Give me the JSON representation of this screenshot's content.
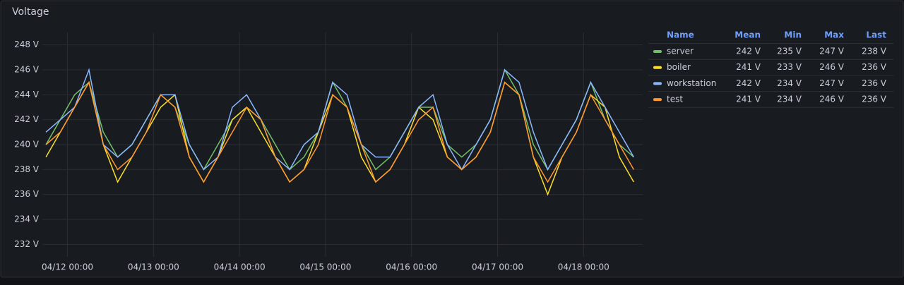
{
  "chart_data": {
    "type": "line",
    "title": "Voltage",
    "x": [
      "04/11 18:00",
      "04/11 22:00",
      "04/12 02:00",
      "04/12 06:00",
      "04/12 10:00",
      "04/12 14:00",
      "04/12 18:00",
      "04/12 22:00",
      "04/13 02:00",
      "04/13 06:00",
      "04/13 10:00",
      "04/13 14:00",
      "04/13 18:00",
      "04/13 22:00",
      "04/14 02:00",
      "04/14 06:00",
      "04/14 10:00",
      "04/14 14:00",
      "04/14 18:00",
      "04/14 22:00",
      "04/15 02:00",
      "04/15 06:00",
      "04/15 10:00",
      "04/15 14:00",
      "04/15 18:00",
      "04/15 22:00",
      "04/16 02:00",
      "04/16 06:00",
      "04/16 10:00",
      "04/16 14:00",
      "04/16 18:00",
      "04/16 22:00",
      "04/17 02:00",
      "04/17 06:00",
      "04/17 10:00",
      "04/17 14:00",
      "04/17 18:00",
      "04/17 22:00",
      "04/18 02:00",
      "04/18 06:00",
      "04/18 10:00",
      "04/18 14:00"
    ],
    "xlim": [
      "04/11 17:00",
      "04/18 16:30"
    ],
    "xticks": [
      "04/12 00:00",
      "04/13 00:00",
      "04/14 00:00",
      "04/15 00:00",
      "04/16 00:00",
      "04/17 00:00",
      "04/18 00:00"
    ],
    "ylim": [
      231,
      249
    ],
    "yticks": [
      {
        "value": 232,
        "label": "232 V"
      },
      {
        "value": 234,
        "label": "234 V"
      },
      {
        "value": 236,
        "label": "236 V"
      },
      {
        "value": 238,
        "label": "238 V"
      },
      {
        "value": 240,
        "label": "240 V"
      },
      {
        "value": 242,
        "label": "242 V"
      },
      {
        "value": 244,
        "label": "244 V"
      },
      {
        "value": 246,
        "label": "246 V"
      },
      {
        "value": 248,
        "label": "248 V"
      }
    ],
    "grid": true,
    "legend_columns": [
      "Name",
      "Mean",
      "Min",
      "Max",
      "Last"
    ],
    "series": [
      {
        "name": "server",
        "color": "#73bf69",
        "stats": [
          "242 V",
          "235 V",
          "247 V",
          "238 V"
        ],
        "values": [
          240,
          242,
          244,
          245,
          241,
          239,
          240,
          242,
          244,
          243,
          240,
          238,
          240,
          242,
          243,
          242,
          240,
          238,
          239,
          241,
          245,
          243,
          240,
          238,
          239,
          241,
          243,
          243,
          240,
          239,
          240,
          242,
          246,
          244,
          240,
          238,
          240,
          242,
          245,
          242,
          240,
          239
        ]
      },
      {
        "name": "boiler",
        "color": "#fade2a",
        "stats": [
          "241 V",
          "233 V",
          "246 V",
          "236 V"
        ],
        "values": [
          239,
          241,
          243,
          245,
          240,
          237,
          239,
          241,
          243,
          244,
          239,
          237,
          239,
          242,
          243,
          241,
          239,
          237,
          238,
          241,
          244,
          243,
          239,
          237,
          238,
          240,
          243,
          242,
          239,
          238,
          239,
          241,
          245,
          244,
          239,
          236,
          239,
          241,
          244,
          243,
          239,
          237
        ]
      },
      {
        "name": "workstation",
        "color": "#8ab8ff",
        "stats": [
          "242 V",
          "234 V",
          "247 V",
          "236 V"
        ],
        "values": [
          241,
          242,
          243,
          246,
          240,
          239,
          240,
          242,
          244,
          244,
          240,
          238,
          239,
          243,
          244,
          242,
          239,
          238,
          240,
          241,
          245,
          244,
          240,
          239,
          239,
          241,
          243,
          244,
          240,
          238,
          240,
          242,
          246,
          245,
          241,
          238,
          240,
          242,
          245,
          243,
          241,
          239
        ]
      },
      {
        "name": "test",
        "color": "#ff9830",
        "stats": [
          "241 V",
          "234 V",
          "246 V",
          "236 V"
        ],
        "values": [
          240,
          241,
          243,
          245,
          240,
          238,
          239,
          241,
          244,
          243,
          239,
          237,
          239,
          241,
          243,
          242,
          239,
          237,
          238,
          240,
          244,
          243,
          240,
          237,
          238,
          240,
          242,
          243,
          239,
          238,
          239,
          241,
          245,
          244,
          239,
          237,
          239,
          241,
          244,
          242,
          240,
          238
        ]
      }
    ]
  }
}
